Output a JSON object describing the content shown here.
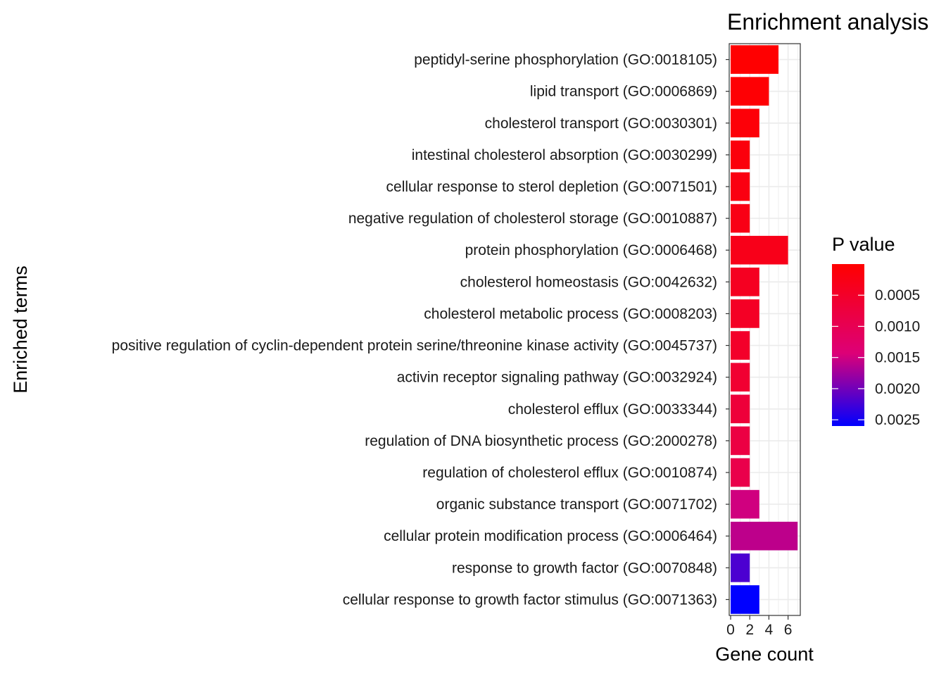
{
  "chart_data": {
    "type": "bar",
    "orientation": "horizontal",
    "title": "Enrichment analysis",
    "xlabel": "Gene count",
    "ylabel": "Enriched terms",
    "xlim": [
      0,
      7.2
    ],
    "xticks": [
      0,
      2,
      4,
      6
    ],
    "grid": true,
    "legend": {
      "title": "P value",
      "position": "right",
      "type": "colorbar",
      "range": [
        0,
        0.0026
      ],
      "ticks": [
        "0.0005",
        "0.0010",
        "0.0015",
        "0.0020",
        "0.0025"
      ],
      "tick_values": [
        0.0005,
        0.001,
        0.0015,
        0.002,
        0.0025
      ],
      "low_color": "#ff0000",
      "high_color": "#0000ff"
    },
    "categories": [
      "peptidyl-serine phosphorylation (GO:0018105)",
      "lipid transport (GO:0006869)",
      "cholesterol transport (GO:0030301)",
      "intestinal cholesterol absorption (GO:0030299)",
      "cellular response to sterol depletion (GO:0071501)",
      "negative regulation of cholesterol storage (GO:0010887)",
      "protein phosphorylation (GO:0006468)",
      "cholesterol homeostasis (GO:0042632)",
      "cholesterol metabolic process (GO:0008203)",
      "positive regulation of cyclin-dependent protein serine/threonine kinase activity (GO:0045737)",
      "activin receptor signaling pathway (GO:0032924)",
      "cholesterol efflux (GO:0033344)",
      "regulation of DNA biosynthetic process (GO:2000278)",
      "regulation of cholesterol efflux (GO:0010874)",
      "organic substance transport (GO:0071702)",
      "cellular protein modification process (GO:0006464)",
      "response to growth factor (GO:0070848)",
      "cellular response to growth factor stimulus (GO:0071363)"
    ],
    "values": [
      5,
      4,
      3,
      2,
      2,
      2,
      6,
      3,
      3,
      2,
      2,
      2,
      2,
      2,
      3,
      7,
      2,
      3
    ],
    "p_values": [
      1e-05,
      5e-05,
      0.0001,
      0.00015,
      0.0002,
      0.00025,
      0.0003,
      0.0004,
      0.00045,
      0.0005,
      0.0006,
      0.0007,
      0.0008,
      0.0009,
      0.0015,
      0.0016,
      0.0022,
      0.0026
    ]
  }
}
